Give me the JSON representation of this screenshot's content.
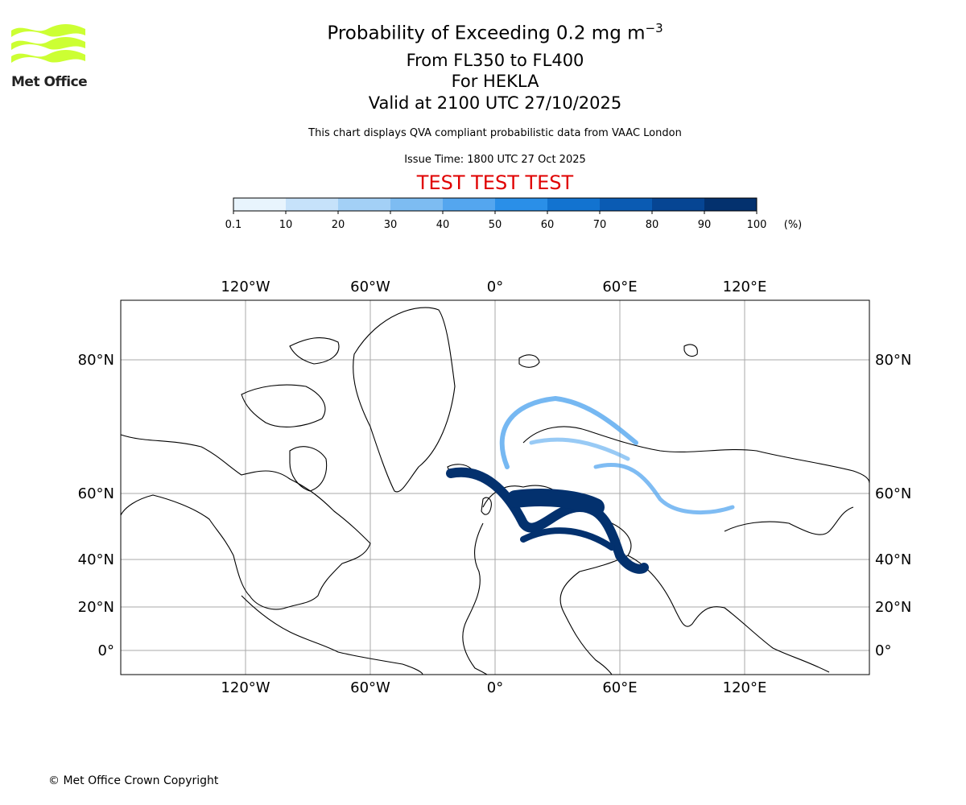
{
  "header": {
    "title_prefix": "Probability of Exceeding 0.2 mg m",
    "title_exp": "−3",
    "line2": "From FL350 to FL400",
    "line3": "For HEKLA",
    "line4": "Valid at 2100 UTC 27/10/2025",
    "description": "This chart displays QVA compliant probabilistic data from VAAC London",
    "issue_time": "Issue Time: 1800 UTC 27 Oct 2025",
    "test_banner": "TEST TEST TEST"
  },
  "logo": {
    "text": "Met Office",
    "color": "#ccff33"
  },
  "colorbar": {
    "ticks": [
      "0.1",
      "10",
      "20",
      "30",
      "40",
      "50",
      "60",
      "70",
      "80",
      "90",
      "100"
    ],
    "unit": "(%)",
    "colors": [
      "#e8f4fd",
      "#c6e2fa",
      "#a3d0f6",
      "#7dbcf2",
      "#54a6ef",
      "#2a8fe8",
      "#1273d0",
      "#0a5bb3",
      "#064593",
      "#03316e"
    ]
  },
  "map": {
    "lon_labels": [
      "120°W",
      "60°W",
      "0°",
      "60°E",
      "120°E"
    ],
    "lat_labels": [
      "80°N",
      "60°N",
      "40°N",
      "20°N",
      "0°"
    ],
    "plume_color_dark": "#03316e",
    "plume_color_light": "#54a6ef"
  },
  "footer": {
    "copyright": "© Met Office Crown Copyright"
  }
}
